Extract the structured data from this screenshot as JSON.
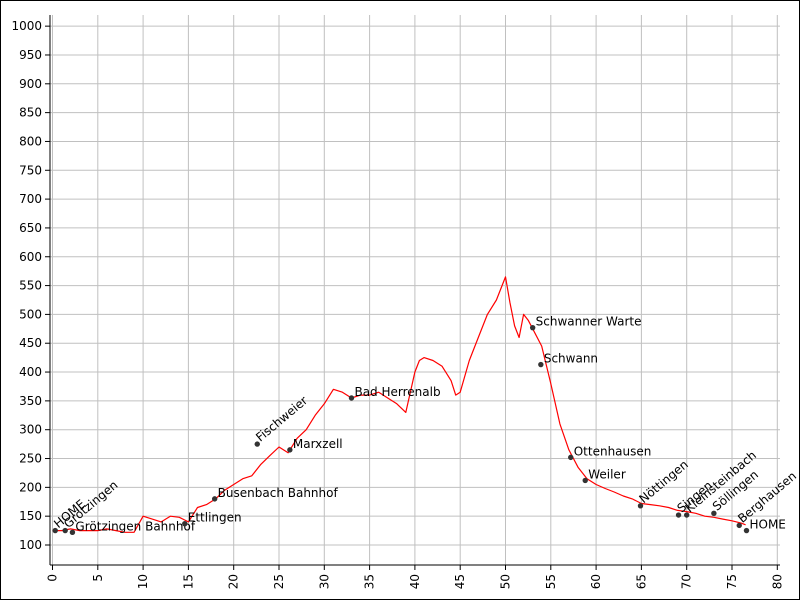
{
  "chart_data": {
    "type": "line",
    "title": "",
    "xlabel": "",
    "ylabel": "",
    "xlim": [
      0,
      80
    ],
    "ylim": [
      100,
      1000
    ],
    "grid": true,
    "x_ticks": [
      0,
      5,
      10,
      15,
      20,
      25,
      30,
      35,
      40,
      45,
      50,
      55,
      60,
      65,
      70,
      75,
      80
    ],
    "y_ticks": [
      100,
      150,
      200,
      250,
      300,
      350,
      400,
      450,
      500,
      550,
      600,
      650,
      700,
      750,
      800,
      850,
      900,
      950,
      1000
    ],
    "colors": {
      "line": "#ff0000",
      "grid": "#c0c0c0",
      "marker": "#333333"
    },
    "series": [
      {
        "x": [
          0,
          1,
          2,
          3,
          4,
          5,
          6,
          7,
          8,
          9,
          10,
          11,
          12,
          13,
          14,
          15,
          16,
          17,
          18,
          19,
          20,
          21,
          22,
          23,
          24,
          25,
          26,
          27,
          28,
          29,
          30,
          31,
          32,
          33,
          34,
          35,
          36,
          37,
          38,
          39,
          40,
          40.5,
          41,
          42,
          43,
          44,
          44.5,
          45,
          46,
          47,
          48,
          49,
          50,
          50.5,
          51,
          51.5,
          52,
          52.5,
          53,
          54,
          55,
          56,
          57,
          58,
          59,
          60,
          61,
          62,
          63,
          64,
          65,
          66,
          67,
          68,
          69,
          70,
          71,
          72,
          73,
          74,
          75,
          76,
          76.5
        ],
        "values": [
          125,
          125,
          128,
          125,
          125,
          125,
          128,
          125,
          122,
          122,
          150,
          145,
          140,
          150,
          148,
          140,
          165,
          170,
          180,
          195,
          205,
          215,
          220,
          240,
          255,
          270,
          260,
          285,
          300,
          325,
          345,
          370,
          365,
          355,
          360,
          360,
          365,
          355,
          345,
          330,
          400,
          420,
          425,
          420,
          410,
          385,
          360,
          365,
          420,
          460,
          500,
          525,
          565,
          520,
          480,
          460,
          500,
          490,
          475,
          445,
          380,
          310,
          265,
          235,
          215,
          205,
          198,
          192,
          185,
          180,
          172,
          170,
          168,
          165,
          160,
          158,
          155,
          150,
          148,
          145,
          142,
          138,
          135
        ]
      }
    ],
    "waypoints": [
      {
        "label": "HOME",
        "x": 0.3,
        "y": 125,
        "angle": -40
      },
      {
        "label": "Grötzingen",
        "x": 1.4,
        "y": 125,
        "angle": -40
      },
      {
        "label": "Grötzingen Bahnhof",
        "x": 2.2,
        "y": 122,
        "angle": 0
      },
      {
        "label": "Ettlingen",
        "x": 14.6,
        "y": 137,
        "angle": 0
      },
      {
        "label": "Busenbach Bahnhof",
        "x": 17.9,
        "y": 180,
        "angle": 0
      },
      {
        "label": "Fischweier",
        "x": 22.6,
        "y": 275,
        "angle": -40
      },
      {
        "label": "Marxzell",
        "x": 26.2,
        "y": 265,
        "angle": 0
      },
      {
        "label": "Bad Herrenalb",
        "x": 33.0,
        "y": 355,
        "angle": 0
      },
      {
        "label": "Schwanner Warte",
        "x": 53.0,
        "y": 477,
        "angle": 0
      },
      {
        "label": "Schwann",
        "x": 53.9,
        "y": 413,
        "angle": 0
      },
      {
        "label": "Ottenhausen",
        "x": 57.2,
        "y": 252,
        "angle": 0
      },
      {
        "label": "Weiler",
        "x": 58.8,
        "y": 212,
        "angle": 0
      },
      {
        "label": "Nöttingen",
        "x": 64.9,
        "y": 168,
        "angle": -40
      },
      {
        "label": "Singen",
        "x": 69.1,
        "y": 152,
        "angle": -40
      },
      {
        "label": "Kleinsteinbach",
        "x": 70.0,
        "y": 152,
        "angle": -40
      },
      {
        "label": "Söllingen",
        "x": 73.0,
        "y": 155,
        "angle": -40
      },
      {
        "label": "Berghausen",
        "x": 75.8,
        "y": 134,
        "angle": -40
      },
      {
        "label": "HOME",
        "x": 76.6,
        "y": 125,
        "angle": 0
      }
    ]
  }
}
